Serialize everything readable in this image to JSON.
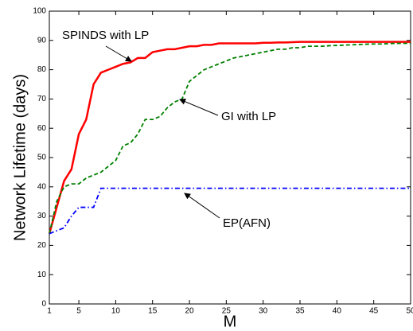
{
  "chart_data": {
    "type": "line",
    "x_label": "M",
    "y_label": "Network Lifetime (days)",
    "x": [
      1,
      2,
      3,
      4,
      5,
      6,
      7,
      8,
      9,
      10,
      11,
      12,
      13,
      14,
      15,
      16,
      17,
      18,
      19,
      20,
      21,
      22,
      23,
      24,
      25,
      26,
      27,
      28,
      29,
      30,
      31,
      32,
      33,
      34,
      35,
      36,
      37,
      38,
      39,
      40,
      41,
      42,
      43,
      44,
      45,
      46,
      47,
      48,
      49,
      50
    ],
    "series": [
      {
        "name": "SPINDS with LP",
        "color": "#ff0000",
        "dash": "solid",
        "values": [
          24,
          33,
          42,
          46,
          58,
          63,
          75,
          79,
          80,
          81,
          82,
          82.5,
          84,
          84,
          86,
          86.5,
          87,
          87,
          87.5,
          88,
          88,
          88.5,
          88.5,
          89,
          89,
          89,
          89,
          89,
          89,
          89.2,
          89.2,
          89.3,
          89.3,
          89.4,
          89.5,
          89.5,
          89.5,
          89.5,
          89.5,
          89.5,
          89.5,
          89.5,
          89.5,
          89.5,
          89.5,
          89.5,
          89.5,
          89.5,
          89.5,
          89.5
        ]
      },
      {
        "name": "GI with LP",
        "color": "#008000",
        "dash": "dashed",
        "values": [
          24,
          35,
          40,
          41,
          41,
          43,
          44,
          45,
          47,
          49,
          54,
          55,
          58,
          63,
          63,
          64,
          67,
          69,
          70,
          76,
          78,
          80,
          81,
          82,
          83,
          84,
          84.5,
          85,
          85.5,
          86,
          86.5,
          87,
          87,
          87.5,
          87.5,
          88,
          88,
          88,
          88.2,
          88.3,
          88.4,
          88.5,
          88.6,
          88.7,
          88.8,
          88.8,
          88.9,
          89,
          89,
          89
        ]
      },
      {
        "name": "EP(AFN)",
        "color": "#0000ff",
        "dash": "dashdot",
        "values": [
          24,
          25,
          26,
          30,
          33,
          33,
          33,
          39.5,
          39.5,
          39.5,
          39.5,
          39.5,
          39.5,
          39.5,
          39.5,
          39.5,
          39.5,
          39.5,
          39.5,
          39.5,
          39.5,
          39.5,
          39.5,
          39.5,
          39.5,
          39.5,
          39.5,
          39.5,
          39.5,
          39.5,
          39.5,
          39.5,
          39.5,
          39.5,
          39.5,
          39.5,
          39.5,
          39.5,
          39.5,
          39.5,
          39.5,
          39.5,
          39.5,
          39.5,
          39.5,
          39.5,
          39.5,
          39.5,
          39.5,
          39.5
        ]
      }
    ],
    "xlim": [
      1,
      50
    ],
    "ylim": [
      0,
      100
    ],
    "xticks": [
      1,
      5,
      10,
      15,
      20,
      25,
      30,
      35,
      40,
      45,
      50
    ],
    "yticks": [
      0,
      10,
      20,
      30,
      40,
      50,
      60,
      70,
      80,
      90,
      100
    ],
    "grid": false
  }
}
